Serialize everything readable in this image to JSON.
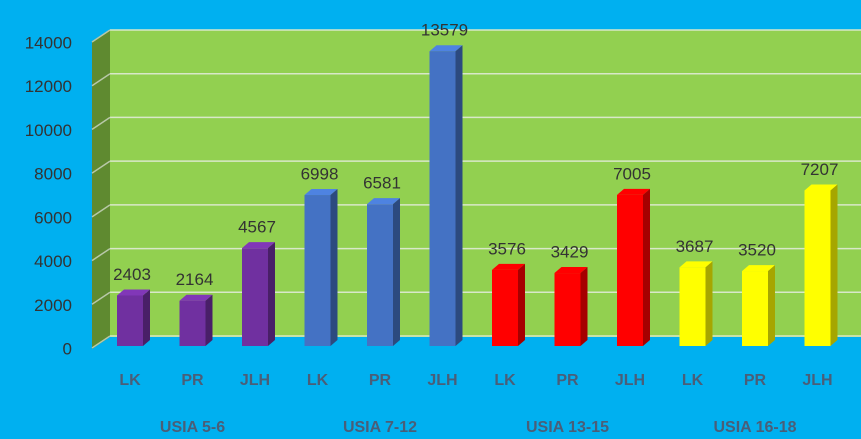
{
  "chart_data": {
    "type": "bar3d",
    "categories": [
      "LK",
      "PR",
      "JLH"
    ],
    "series": [
      {
        "name": "USIA 5-6",
        "color": "#7030a0",
        "values": [
          2403,
          2164,
          4567
        ]
      },
      {
        "name": "USIA 7-12",
        "color": "#4472c4",
        "values": [
          6998,
          6581,
          13579
        ]
      },
      {
        "name": "USIA 13-15",
        "color": "#ff0000",
        "values": [
          3576,
          3429,
          7005
        ]
      },
      {
        "name": "USIA 16-18",
        "color": "#ffff00",
        "values": [
          3687,
          3520,
          7207
        ]
      }
    ],
    "ylim": [
      0,
      14000
    ],
    "yticks": [
      0,
      2000,
      4000,
      6000,
      8000,
      10000,
      12000,
      14000
    ],
    "grid": true
  }
}
